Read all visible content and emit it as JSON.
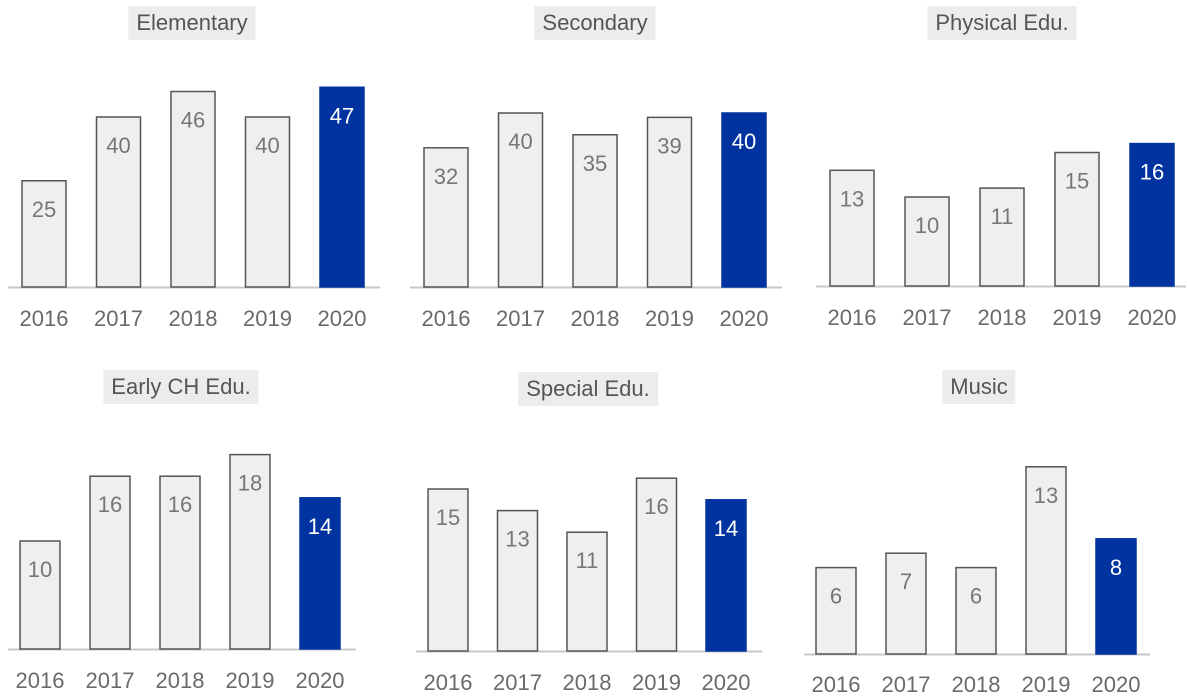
{
  "colors": {
    "bar_fill": "#efefef",
    "bar_stroke": "#555555",
    "highlight_fill": "#0033a0",
    "label_color": "#777777",
    "highlight_label_color": "#ffffff",
    "baseline": "#c8c8c8",
    "title_bg": "#ececec"
  },
  "chart_data": [
    {
      "type": "bar",
      "title": "Elementary",
      "categories": [
        "2016",
        "2017",
        "2018",
        "2019",
        "2020"
      ],
      "values": [
        25,
        40,
        46,
        40,
        47
      ],
      "highlight_index": 4
    },
    {
      "type": "bar",
      "title": "Secondary",
      "categories": [
        "2016",
        "2017",
        "2018",
        "2019",
        "2020"
      ],
      "values": [
        32,
        40,
        35,
        39,
        40
      ],
      "highlight_index": 4
    },
    {
      "type": "bar",
      "title": "Physical Edu.",
      "categories": [
        "2016",
        "2017",
        "2018",
        "2019",
        "2020"
      ],
      "values": [
        13,
        10,
        11,
        15,
        16
      ],
      "highlight_index": 4
    },
    {
      "type": "bar",
      "title": "Early CH Edu.",
      "categories": [
        "2016",
        "2017",
        "2018",
        "2019",
        "2020"
      ],
      "values": [
        10,
        16,
        16,
        18,
        14
      ],
      "highlight_index": 4
    },
    {
      "type": "bar",
      "title": "Special Edu.",
      "categories": [
        "2016",
        "2017",
        "2018",
        "2019",
        "2020"
      ],
      "values": [
        15,
        13,
        11,
        16,
        14
      ],
      "highlight_index": 4
    },
    {
      "type": "bar",
      "title": "Music",
      "categories": [
        "2016",
        "2017",
        "2018",
        "2019",
        "2020"
      ],
      "values": [
        6,
        7,
        6,
        13,
        8
      ],
      "highlight_index": 4
    }
  ]
}
